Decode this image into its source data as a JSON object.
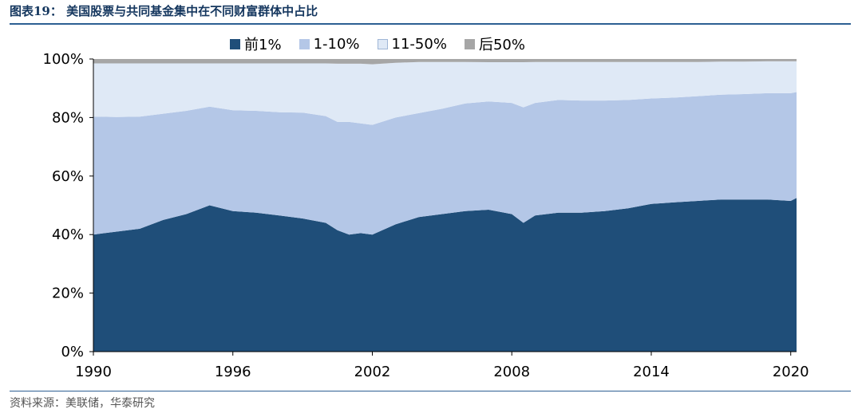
{
  "figure": {
    "title": "图表19：   美国股票与共同基金集中在不同财富群体中占比",
    "source": "资料来源：美联储，华泰研究"
  },
  "colors": {
    "top1": "#1f4e79",
    "p1_10": "#b4c7e7",
    "p11_50": "#dfe9f6",
    "bottom50": "#a6a6a6",
    "rule": "#2d5f93"
  },
  "chart_data": {
    "type": "area",
    "stacked": true,
    "title": "",
    "xlabel": "",
    "ylabel": "",
    "xlim": [
      1990,
      2020.25
    ],
    "ylim": [
      0,
      100
    ],
    "legend_position": "top",
    "x_ticks": [
      "1990",
      "1996",
      "2002",
      "2008",
      "2014",
      "2020"
    ],
    "y_ticks": [
      "0%",
      "20%",
      "40%",
      "60%",
      "80%",
      "100%"
    ],
    "x": [
      1990,
      1991,
      1992,
      1993,
      1994,
      1995,
      1996,
      1997,
      1998,
      1999,
      2000,
      2000.5,
      2001,
      2001.5,
      2002,
      2003,
      2004,
      2005,
      2006,
      2007,
      2008,
      2008.5,
      2009,
      2010,
      2011,
      2012,
      2013,
      2014,
      2015,
      2016,
      2017,
      2018,
      2019,
      2020,
      2020.25
    ],
    "series": [
      {
        "name": "前1%",
        "color_key": "top1",
        "values": [
          40,
          41,
          42,
          45,
          47,
          50,
          48,
          47.5,
          46.5,
          45.5,
          44,
          41.5,
          40,
          40.5,
          40,
          43.5,
          46,
          47,
          48,
          48.5,
          47,
          44,
          46.5,
          47.5,
          47.5,
          48,
          49,
          50.5,
          51,
          51.5,
          52,
          52,
          52,
          51.5,
          52.5
        ]
      },
      {
        "name": "1-10%",
        "color_key": "p1_10",
        "values": [
          40.3,
          39.2,
          38.3,
          36.3,
          35.3,
          33.7,
          34.5,
          34.8,
          35.3,
          36.2,
          36.5,
          37,
          38.5,
          37.5,
          37.5,
          36.5,
          35.5,
          36,
          36.8,
          37,
          38,
          39.5,
          38.5,
          38.5,
          38.3,
          37.8,
          37,
          36,
          35.8,
          35.8,
          35.8,
          36,
          36.3,
          36.8,
          36.2
        ]
      },
      {
        "name": "11-50%",
        "color_key": "p11_50",
        "values": [
          18.2,
          18.3,
          18.2,
          17.2,
          16.2,
          14.8,
          16,
          16.2,
          16.7,
          16.8,
          18,
          19.9,
          19.9,
          20.4,
          20.7,
          18.7,
          17.5,
          16,
          14.2,
          13.4,
          13.9,
          15.4,
          14,
          13,
          13.2,
          13.2,
          13,
          12.5,
          12.2,
          11.7,
          11.3,
          11.1,
          10.9,
          10.9,
          10.5
        ]
      },
      {
        "name": "后50%",
        "color_key": "bottom50",
        "values": [
          1.5,
          1.5,
          1.5,
          1.5,
          1.5,
          1.5,
          1.5,
          1.5,
          1.5,
          1.5,
          1.5,
          1.6,
          1.6,
          1.6,
          1.8,
          1.3,
          1,
          1,
          1,
          1.1,
          1.1,
          1.1,
          1,
          1,
          1,
          1,
          1,
          1,
          1,
          1,
          0.9,
          0.9,
          0.8,
          0.8,
          0.8
        ]
      }
    ]
  }
}
